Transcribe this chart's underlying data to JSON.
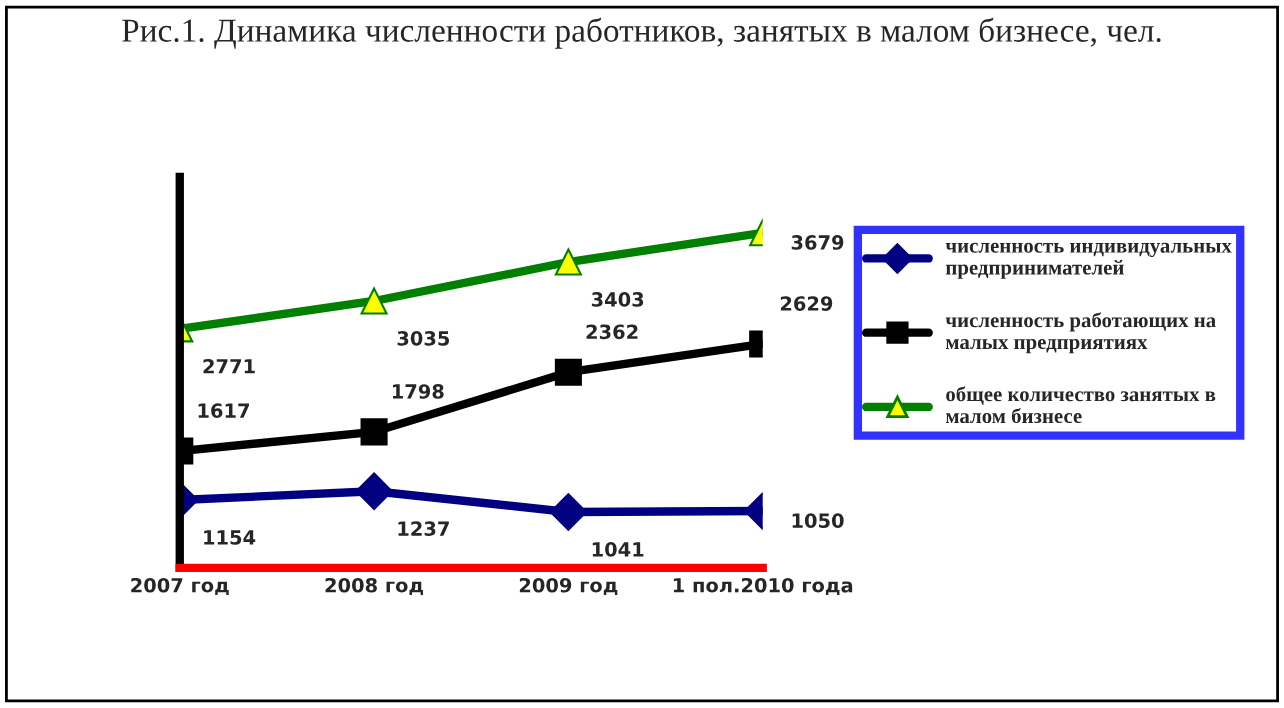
{
  "chart_data": {
    "type": "line",
    "title": "Рис.1. Динамика численности работников, занятых в малом бизнесе, чел.",
    "categories": [
      "2007 год",
      "2008 год",
      "2009 год",
      "1 пол.2010 года"
    ],
    "series": [
      {
        "name": "численность индивидуальных предпринимателей",
        "color": "#000080",
        "marker": "diamond",
        "values": [
          1154,
          1237,
          1041,
          1050
        ]
      },
      {
        "name": "численность работающих на малых предприятиях",
        "color": "#000000",
        "marker": "square",
        "values": [
          1617,
          1798,
          2362,
          2629
        ]
      },
      {
        "name": "общее количество занятых в малом бизнесе",
        "color": "#008000",
        "marker": "triangle",
        "values": [
          2771,
          3035,
          3403,
          3679
        ]
      }
    ],
    "data_labels": true,
    "legend": "right",
    "line_style": "solid"
  }
}
